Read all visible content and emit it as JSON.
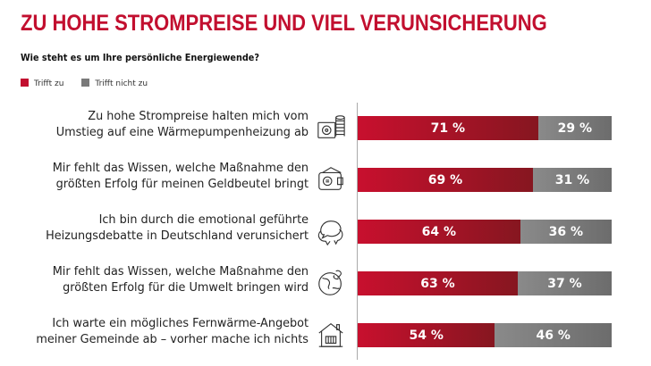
{
  "chart_data": {
    "type": "bar",
    "orientation": "horizontal-stacked",
    "title": "ZU HOHE STROMPREISE UND VIEL VERUNSICHERUNG",
    "subtitle": "Wie steht es um Ihre persönliche Energiewende?",
    "legend": [
      {
        "name": "Trifft zu",
        "color": "#c8102e"
      },
      {
        "name": "Trifft nicht zu",
        "color": "#7a7a7a"
      }
    ],
    "categories": [
      [
        "Zu hohe Strompreise halten mich vom",
        "Umstieg auf eine Wärmepumpenheizung ab"
      ],
      [
        "Mir fehlt das Wissen, welche Maßnahme den",
        "größten Erfolg für meinen Geldbeutel bringt"
      ],
      [
        "Ich bin durch die emotional geführte",
        "Heizungsdebatte in Deutschland verunsichert"
      ],
      [
        "Mir fehlt das Wissen, welche Maßnahme den",
        "größten Erfolg für die Umwelt bringen wird"
      ],
      [
        "Ich warte ein mögliches Fernwärme-Angebot",
        "meiner Gemeinde ab – vorher mache ich nichts"
      ]
    ],
    "icons": [
      "heat-pump-coins-icon",
      "wallet-euro-icon",
      "speech-bubbles-icon",
      "globe-icon",
      "house-radiator-icon"
    ],
    "series": [
      {
        "name": "Trifft zu",
        "values": [
          71,
          69,
          64,
          63,
          54
        ]
      },
      {
        "name": "Trifft nicht zu",
        "values": [
          29,
          31,
          36,
          37,
          46
        ]
      }
    ],
    "unit": " %",
    "xlim": [
      0,
      100
    ]
  }
}
